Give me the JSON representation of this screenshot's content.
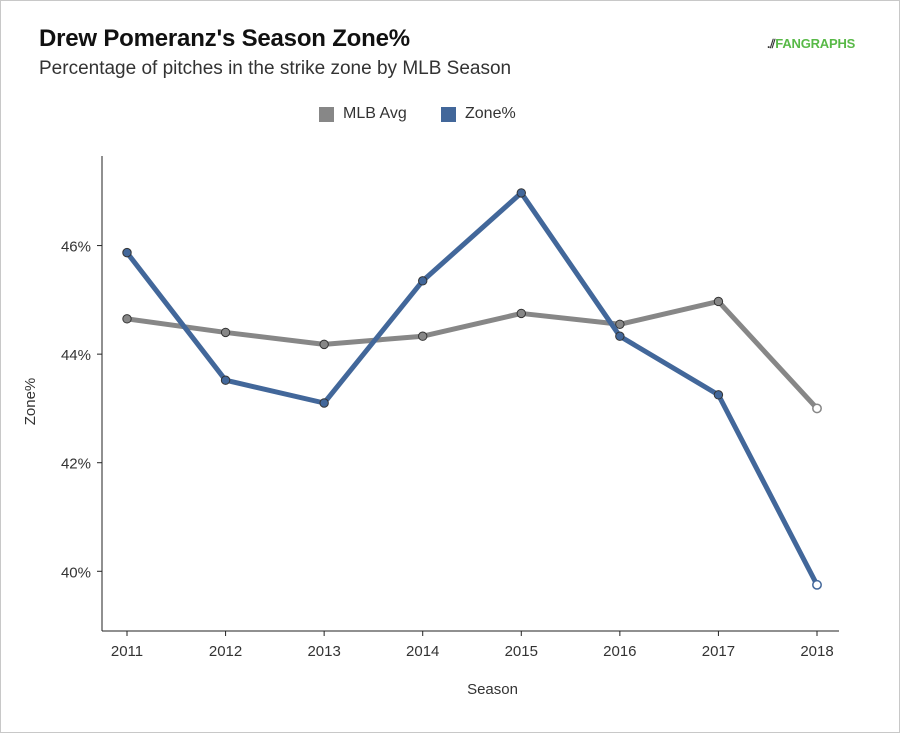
{
  "header": {
    "title": "Drew Pomeranz's Season Zone%",
    "subtitle": "Percentage of pitches in the strike zone by MLB Season",
    "logo_text": "FANGRAPHS"
  },
  "colors": {
    "mlb_avg": "#878787",
    "zone": "#42679a",
    "axis": "#222222",
    "text": "#333333"
  },
  "chart_data": {
    "type": "line",
    "title": "Drew Pomeranz's Season Zone%",
    "subtitle": "Percentage of pitches in the strike zone by MLB Season",
    "xlabel": "Season",
    "ylabel": "Zone%",
    "x": [
      2011,
      2012,
      2013,
      2014,
      2015,
      2016,
      2017,
      2018
    ],
    "x_tick_labels": [
      "2011",
      "2012",
      "2013",
      "2014",
      "2015",
      "2016",
      "2017",
      "2018"
    ],
    "y_ticks": [
      40,
      42,
      44,
      46
    ],
    "y_tick_labels": [
      "40%",
      "42%",
      "44%",
      "46%"
    ],
    "ylim": [
      38.9,
      47.65
    ],
    "legend_position": "top-center",
    "series": [
      {
        "name": "MLB Avg",
        "color": "#878787",
        "values": [
          44.65,
          44.4,
          44.18,
          44.33,
          44.75,
          44.55,
          44.97,
          43.0
        ]
      },
      {
        "name": "Zone%",
        "color": "#42679a",
        "values": [
          45.87,
          43.52,
          43.1,
          45.35,
          46.97,
          44.33,
          43.25,
          39.75
        ]
      }
    ],
    "hollow_last_point": true
  }
}
